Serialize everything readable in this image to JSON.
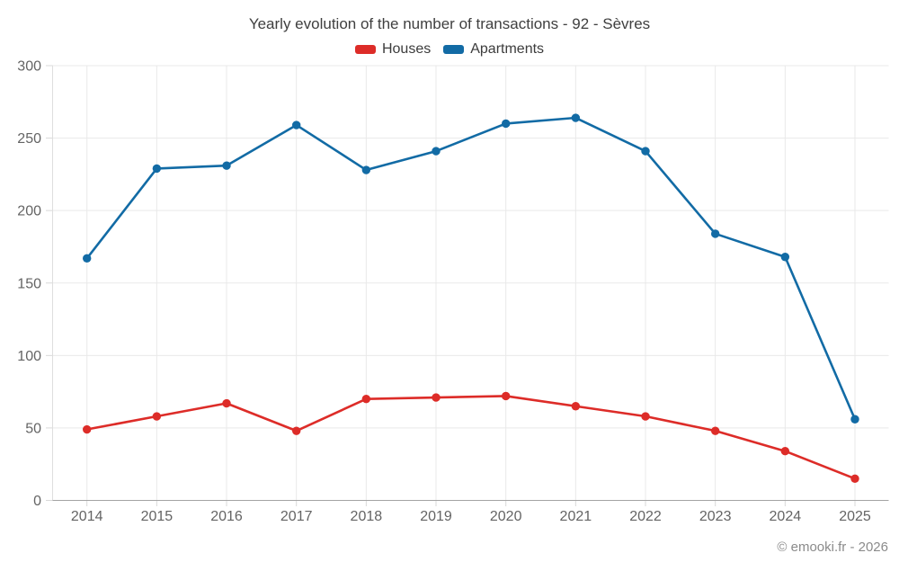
{
  "title": "Yearly evolution of the number of transactions - 92 - Sèvres",
  "footer": "© emooki.fr - 2026",
  "colors": {
    "houses": "#dd2c28",
    "apartments": "#126ba5",
    "gridline": "#e9e9e9",
    "axis_line": "#a3a3a3",
    "tick": "#d9d9d9",
    "tick_label": "#646464",
    "title_text": "#3f3f3f",
    "footer_text": "#8b8b8b"
  },
  "chart_data": {
    "type": "line",
    "x": [
      2014,
      2015,
      2016,
      2017,
      2018,
      2019,
      2020,
      2021,
      2022,
      2023,
      2024,
      2025
    ],
    "series": [
      {
        "name": "Houses",
        "color": "#dd2c28",
        "values": [
          49,
          58,
          67,
          48,
          70,
          71,
          72,
          65,
          58,
          48,
          34,
          15
        ]
      },
      {
        "name": "Apartments",
        "color": "#126ba5",
        "values": [
          167,
          229,
          231,
          259,
          228,
          241,
          260,
          264,
          241,
          184,
          168,
          56
        ]
      }
    ],
    "title": "Yearly evolution of the number of transactions - 92 - Sèvres",
    "xlabel": "",
    "ylabel": "",
    "ylim": [
      0,
      300
    ],
    "yticks": [
      0,
      50,
      100,
      150,
      200,
      250,
      300
    ],
    "grid": true,
    "legend_position": "top",
    "marker": "circle"
  }
}
